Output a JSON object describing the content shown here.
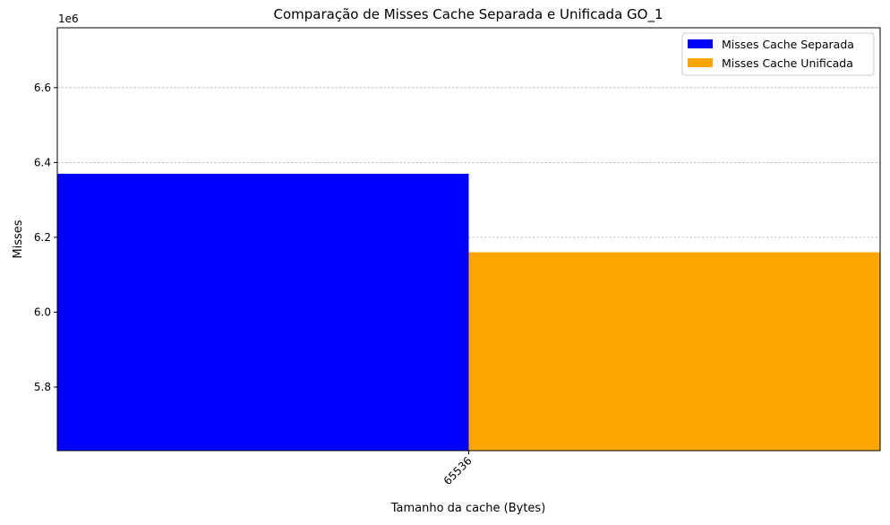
{
  "chart_data": {
    "type": "bar",
    "title": "Comparação de Misses Cache Separada e Unificada GO_1",
    "xlabel": "Tamanho da cache (Bytes)",
    "ylabel": "Misses",
    "y_offset_label": "1e6",
    "categories": [
      "65536"
    ],
    "series": [
      {
        "name": "Misses Cache Separada",
        "color": "#0000ff",
        "values": [
          6370000
        ]
      },
      {
        "name": "Misses Cache Unificada",
        "color": "#ffa500",
        "values": [
          6160000
        ]
      }
    ],
    "ylim": [
      5630000,
      6760000
    ],
    "yticks": [
      5800000,
      6000000,
      6200000,
      6400000,
      6600000
    ],
    "ytick_labels": [
      "5.8",
      "6.0",
      "6.2",
      "6.4",
      "6.6"
    ],
    "grid": "y-dashed",
    "legend_position": "top-right"
  }
}
